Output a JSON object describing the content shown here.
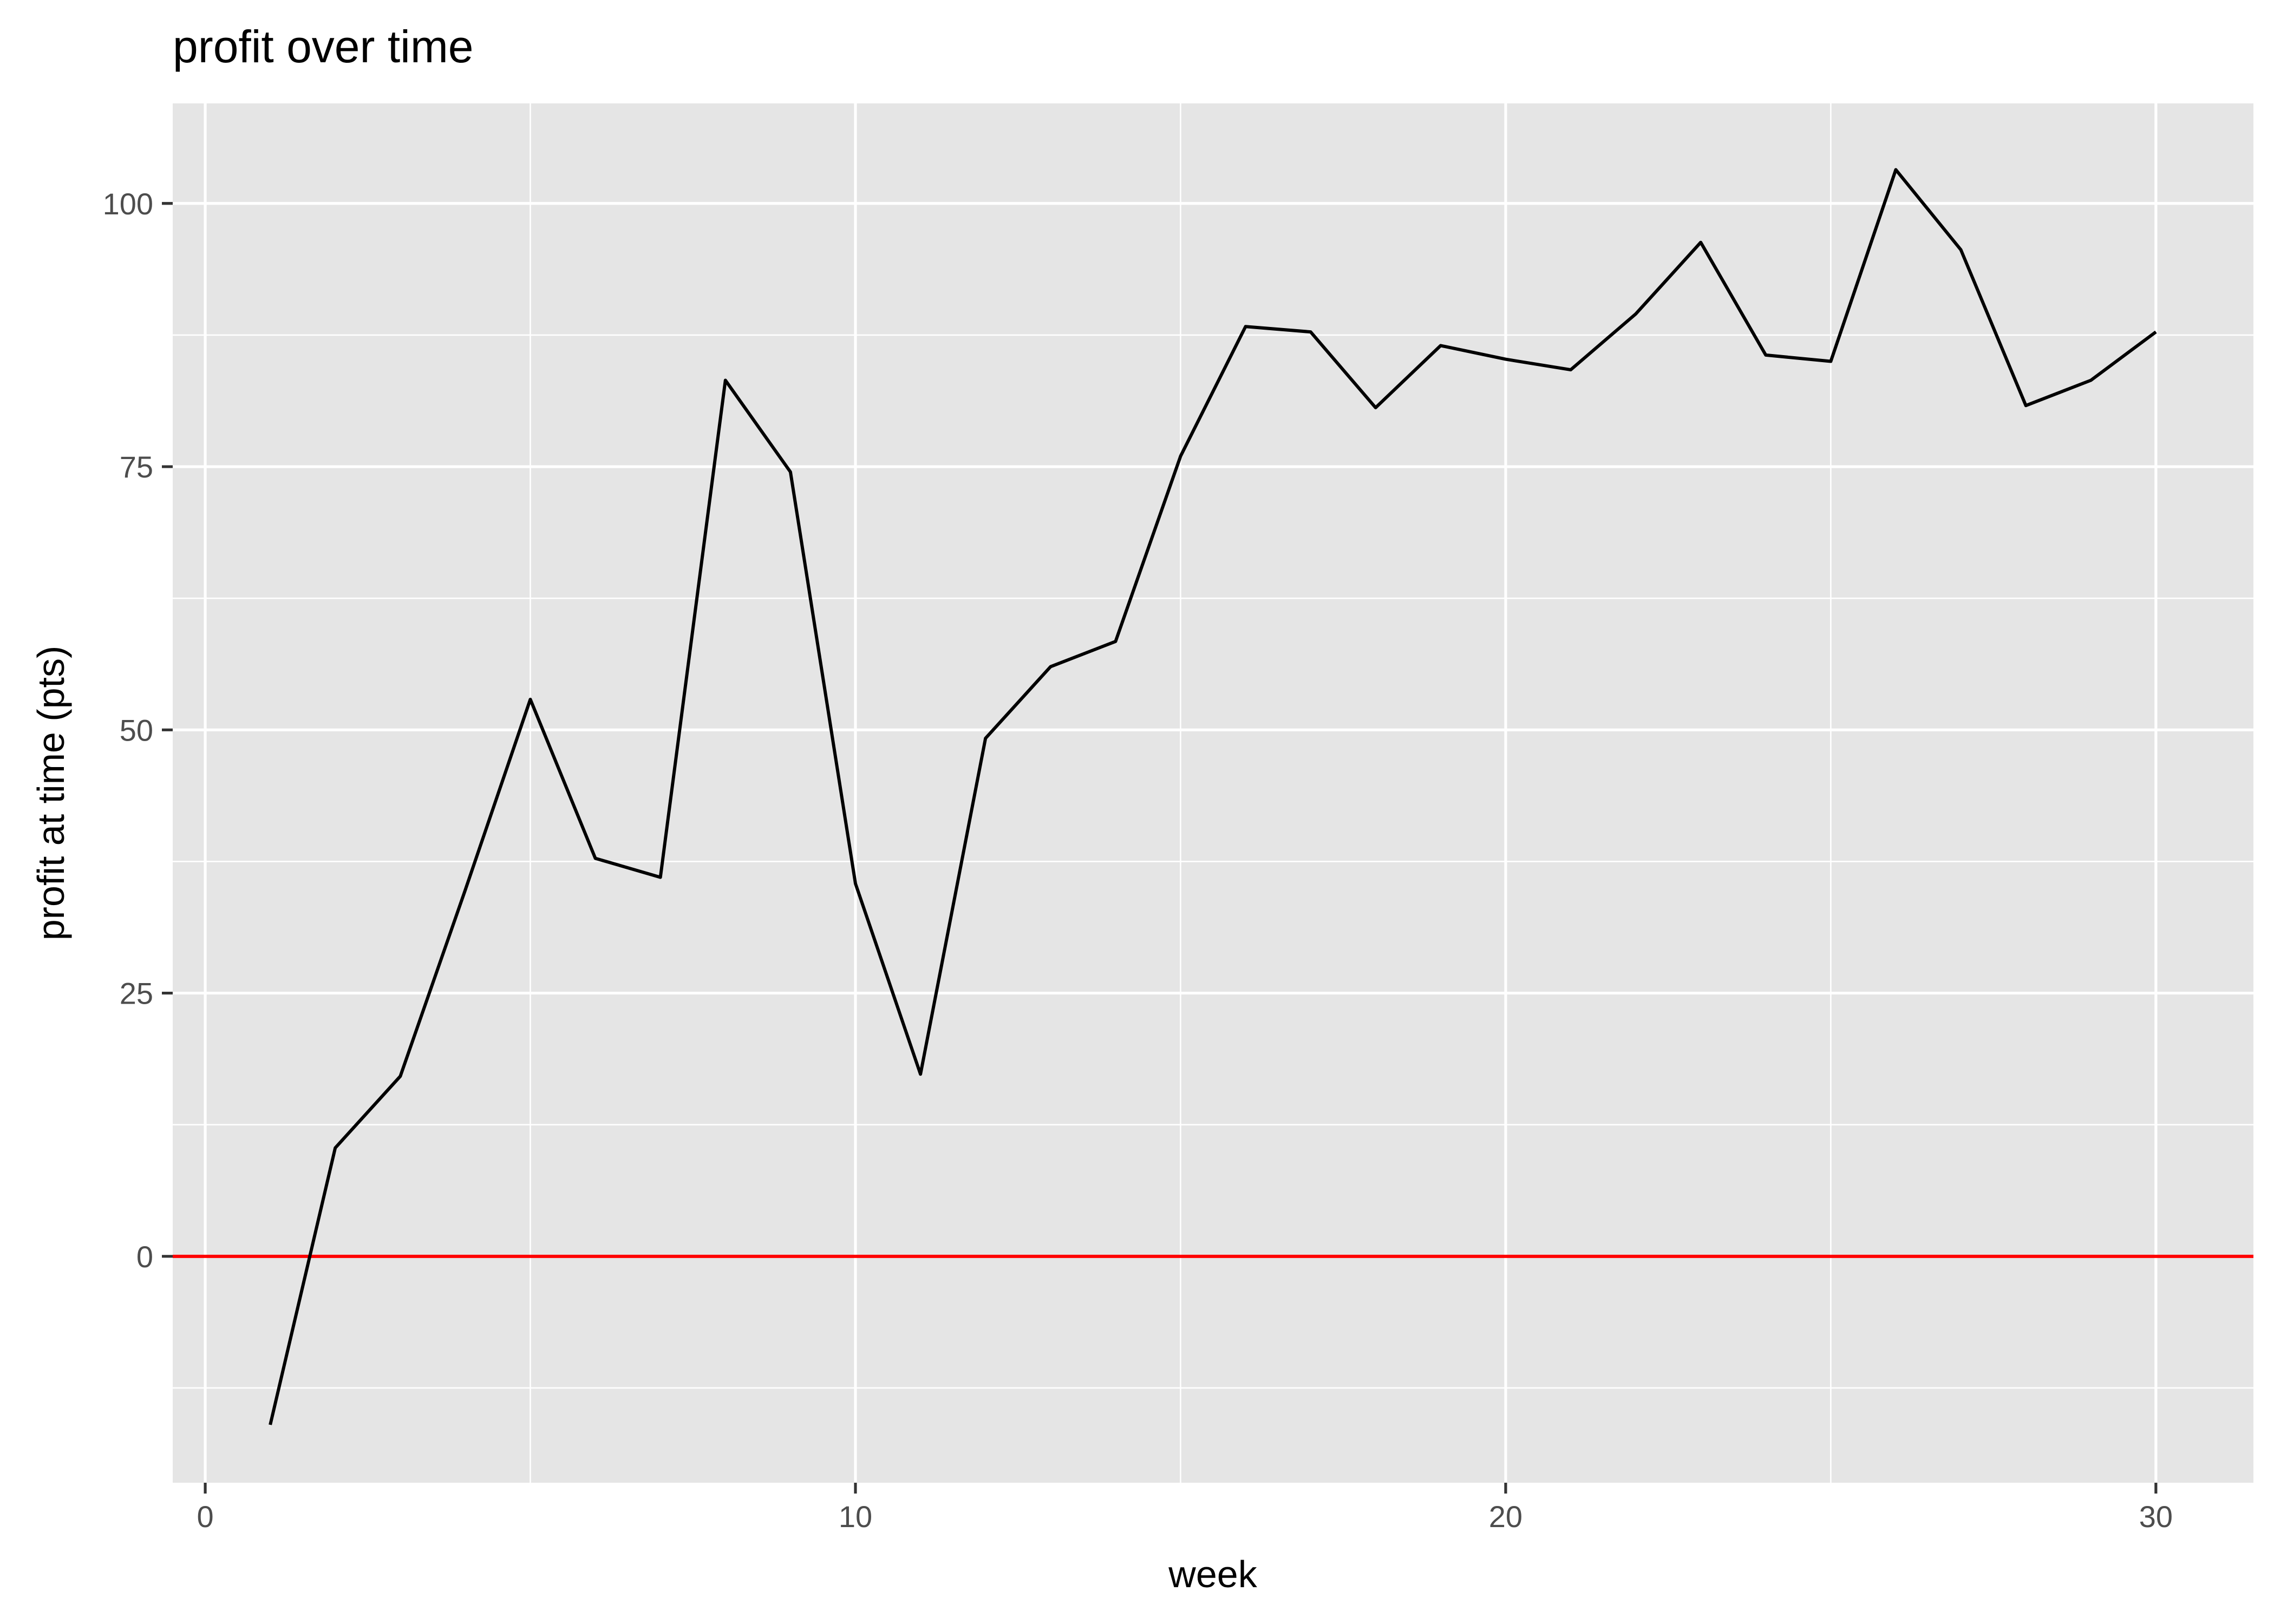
{
  "chart_data": {
    "type": "line",
    "title": "profit over time",
    "xlabel": "week",
    "ylabel": "profit at time (pts)",
    "xlim": [
      -0.5,
      31.5
    ],
    "ylim": [
      -21.5,
      109.5
    ],
    "x_ticks": [
      0,
      10,
      20,
      30
    ],
    "x_tick_labels": [
      "0",
      "10",
      "20",
      "30"
    ],
    "y_ticks": [
      0,
      25,
      50,
      75,
      100
    ],
    "y_tick_labels": [
      "0",
      "25",
      "50",
      "75",
      "100"
    ],
    "grid": true,
    "legend": "none",
    "series": [
      {
        "color": "#000000",
        "x": [
          1,
          2,
          3,
          4,
          5,
          6,
          7,
          8,
          9,
          10,
          11,
          12,
          13,
          14,
          15,
          16,
          17,
          18,
          19,
          20,
          21,
          22,
          23,
          24,
          25,
          26,
          27,
          28,
          29,
          30
        ],
        "y": [
          -16,
          10.3,
          17.1,
          34.8,
          52.9,
          37.8,
          36,
          83.2,
          74.5,
          35.4,
          17.3,
          49.2,
          56,
          58.4,
          76,
          88.3,
          87.8,
          80.6,
          86.5,
          85.2,
          84.2,
          89.5,
          96.3,
          85.6,
          85,
          103.2,
          95.6,
          80.8,
          83.2,
          87.8
        ]
      }
    ],
    "reference_lines": [
      {
        "axis": "y",
        "value": 0,
        "color": "#ff0000"
      }
    ]
  }
}
